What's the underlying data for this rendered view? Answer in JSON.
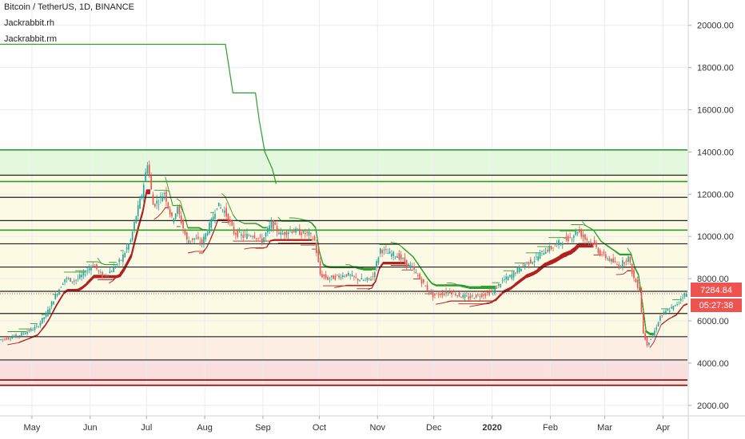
{
  "header": {
    "title": "Bitcoin / TetherUS, 1D, BINANCE",
    "indicator1": "Jackrabbit.rh",
    "indicator2": "Jackrabbit.rm"
  },
  "colors": {
    "green_line": "#2e9e2e",
    "red_line": "#b22222",
    "dark_red": "#8b0000",
    "candle_up": "#26a69a",
    "candle_down": "#ef5350",
    "band_green": "#d9f5d0",
    "band_yellow": "#fbf7dc",
    "band_orange": "#fbe8d8",
    "band_pink": "#f8d4d4",
    "last_price_bg": "#ef5350",
    "axis_text": "#333333"
  },
  "price_badge": {
    "last_price": "7284.84",
    "countdown": "05:27:38"
  },
  "chart_data": {
    "type": "candlestick",
    "symbol": "BTCUSDT",
    "y_axis": {
      "ylim": [
        1500,
        21200
      ],
      "ticks": [
        "2000.00",
        "4000.00",
        "6000.00",
        "8000.00",
        "10000.00",
        "12000.00",
        "14000.00",
        "16000.00",
        "18000.00",
        "20000.00"
      ],
      "tick_values": [
        2000,
        4000,
        6000,
        8000,
        10000,
        12000,
        14000,
        16000,
        18000,
        20000
      ],
      "scale": "linear"
    },
    "x_axis": {
      "start_day": 0,
      "end_day": 366,
      "tick_labels": [
        "May",
        "Jun",
        "Jul",
        "Aug",
        "Sep",
        "Oct",
        "Nov",
        "Dec",
        "2020",
        "Feb",
        "Mar",
        "Apr"
      ],
      "tick_days": [
        17,
        48,
        78,
        109,
        140,
        170,
        201,
        231,
        262,
        293,
        322,
        353
      ],
      "bold_label": "2020"
    },
    "price_path": [
      [
        0,
        5100
      ],
      [
        10,
        5300
      ],
      [
        20,
        5700
      ],
      [
        25,
        6300
      ],
      [
        30,
        7200
      ],
      [
        35,
        8000
      ],
      [
        40,
        7900
      ],
      [
        45,
        8200
      ],
      [
        50,
        8700
      ],
      [
        55,
        8100
      ],
      [
        60,
        8400
      ],
      [
        65,
        8900
      ],
      [
        70,
        9800
      ],
      [
        73,
        11000
      ],
      [
        76,
        12000
      ],
      [
        79,
        13500
      ],
      [
        82,
        11500
      ],
      [
        85,
        11700
      ],
      [
        88,
        12100
      ],
      [
        92,
        10800
      ],
      [
        95,
        11300
      ],
      [
        100,
        9800
      ],
      [
        104,
        9900
      ],
      [
        108,
        9700
      ],
      [
        113,
        10700
      ],
      [
        116,
        11500
      ],
      [
        120,
        11200
      ],
      [
        125,
        10200
      ],
      [
        130,
        10000
      ],
      [
        135,
        10100
      ],
      [
        140,
        9800
      ],
      [
        145,
        10600
      ],
      [
        150,
        10100
      ],
      [
        155,
        10300
      ],
      [
        160,
        10200
      ],
      [
        165,
        10100
      ],
      [
        168,
        9800
      ],
      [
        171,
        8200
      ],
      [
        175,
        8000
      ],
      [
        180,
        8100
      ],
      [
        185,
        8200
      ],
      [
        190,
        8000
      ],
      [
        195,
        7900
      ],
      [
        199,
        8100
      ],
      [
        203,
        9400
      ],
      [
        207,
        9200
      ],
      [
        212,
        9100
      ],
      [
        216,
        8800
      ],
      [
        220,
        8500
      ],
      [
        224,
        8000
      ],
      [
        228,
        7500
      ],
      [
        231,
        7200
      ],
      [
        236,
        7300
      ],
      [
        240,
        7400
      ],
      [
        245,
        7200
      ],
      [
        250,
        7100
      ],
      [
        255,
        7200
      ],
      [
        260,
        7300
      ],
      [
        263,
        7400
      ],
      [
        268,
        7900
      ],
      [
        272,
        8100
      ],
      [
        276,
        8400
      ],
      [
        280,
        8700
      ],
      [
        285,
        8900
      ],
      [
        290,
        9300
      ],
      [
        295,
        9500
      ],
      [
        300,
        9800
      ],
      [
        305,
        10000
      ],
      [
        308,
        10300
      ],
      [
        312,
        9900
      ],
      [
        316,
        9700
      ],
      [
        320,
        9200
      ],
      [
        325,
        8900
      ],
      [
        330,
        8600
      ],
      [
        335,
        9000
      ],
      [
        338,
        8000
      ],
      [
        341,
        7500
      ],
      [
        343,
        5400
      ],
      [
        345,
        4900
      ],
      [
        348,
        5300
      ],
      [
        352,
        6200
      ],
      [
        356,
        6500
      ],
      [
        360,
        6700
      ],
      [
        364,
        7200
      ],
      [
        366,
        7285
      ]
    ],
    "horizontal_levels": [
      {
        "price": 14100,
        "color": "green"
      },
      {
        "price": 12900,
        "color": "black"
      },
      {
        "price": 12600,
        "color": "green"
      },
      {
        "price": 11850,
        "color": "black"
      },
      {
        "price": 10750,
        "color": "black"
      },
      {
        "price": 10300,
        "color": "green"
      },
      {
        "price": 9650,
        "color": "black"
      },
      {
        "price": 8550,
        "color": "black"
      },
      {
        "price": 7400,
        "color": "black"
      },
      {
        "price": 6350,
        "color": "black"
      },
      {
        "price": 5250,
        "color": "black"
      },
      {
        "price": 4150,
        "color": "black"
      },
      {
        "price": 3200,
        "color": "red"
      },
      {
        "price": 2950,
        "color": "red"
      }
    ],
    "jackrabbit_rh": [
      [
        0,
        19100
      ],
      [
        120,
        19100
      ],
      [
        124,
        16800
      ],
      [
        136,
        16800
      ],
      [
        138,
        15500
      ],
      [
        141,
        14000
      ],
      [
        145,
        13200
      ],
      [
        147,
        12500
      ]
    ],
    "bands": [
      {
        "from": 12900,
        "to": 14100,
        "color": "green"
      },
      {
        "from": 9650,
        "to": 12900,
        "color": "yellow"
      },
      {
        "from": 5250,
        "to": 9650,
        "color": "yellow"
      },
      {
        "from": 4150,
        "to": 5250,
        "color": "orange"
      },
      {
        "from": 2950,
        "to": 4150,
        "color": "pink"
      }
    ]
  }
}
